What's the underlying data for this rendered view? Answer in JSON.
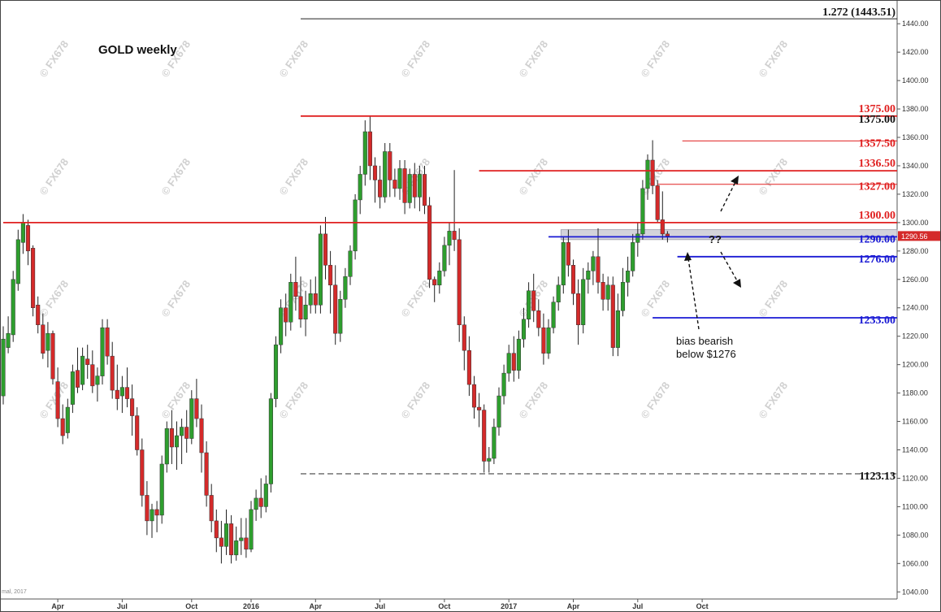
{
  "chart_data": {
    "type": "candlestick",
    "title": "GOLD weekly",
    "ylim": [
      1035,
      1455
    ],
    "y_ticks": [
      1040,
      1060,
      1080,
      1100,
      1120,
      1140,
      1160,
      1180,
      1200,
      1220,
      1240,
      1260,
      1280,
      1300,
      1320,
      1340,
      1360,
      1380,
      1400,
      1420,
      1440
    ],
    "x_ticks": [
      {
        "label": "Apr",
        "bar": 11
      },
      {
        "label": "Jul",
        "bar": 24
      },
      {
        "label": "Oct",
        "bar": 38
      },
      {
        "label": "2016",
        "bar": 50
      },
      {
        "label": "Apr",
        "bar": 63
      },
      {
        "label": "Jul",
        "bar": 76
      },
      {
        "label": "Oct",
        "bar": 89
      },
      {
        "label": "2017",
        "bar": 102
      },
      {
        "label": "Apr",
        "bar": 115
      },
      {
        "label": "Jul",
        "bar": 128
      },
      {
        "label": "Oct",
        "bar": 141
      }
    ],
    "bars_visible": 143,
    "source_note": "mal, 2017",
    "current_price": "1290.56",
    "colors": {
      "up": "#2e9e2e",
      "down": "#d42a2a",
      "resistance": "#e02020",
      "support": "#1a1ad4",
      "neutral": "#222222"
    },
    "candles": [
      [
        1178,
        1227,
        1172,
        1218
      ],
      [
        1212,
        1234,
        1208,
        1222
      ],
      [
        1221,
        1266,
        1216,
        1260
      ],
      [
        1257,
        1295,
        1252,
        1288
      ],
      [
        1286,
        1306,
        1278,
        1300
      ],
      [
        1298,
        1302,
        1270,
        1280
      ],
      [
        1282,
        1284,
        1234,
        1240
      ],
      [
        1242,
        1248,
        1222,
        1228
      ],
      [
        1228,
        1236,
        1204,
        1208
      ],
      [
        1210,
        1230,
        1198,
        1222
      ],
      [
        1222,
        1224,
        1186,
        1190
      ],
      [
        1188,
        1198,
        1156,
        1162
      ],
      [
        1162,
        1172,
        1144,
        1150
      ],
      [
        1152,
        1176,
        1148,
        1170
      ],
      [
        1172,
        1200,
        1166,
        1195
      ],
      [
        1196,
        1212,
        1180,
        1184
      ],
      [
        1186,
        1212,
        1182,
        1206
      ],
      [
        1204,
        1214,
        1190,
        1200
      ],
      [
        1200,
        1210,
        1180,
        1185
      ],
      [
        1186,
        1198,
        1174,
        1192
      ],
      [
        1192,
        1232,
        1186,
        1226
      ],
      [
        1226,
        1232,
        1200,
        1206
      ],
      [
        1206,
        1216,
        1176,
        1182
      ],
      [
        1182,
        1200,
        1168,
        1176
      ],
      [
        1178,
        1192,
        1166,
        1184
      ],
      [
        1184,
        1198,
        1170,
        1176
      ],
      [
        1176,
        1186,
        1150,
        1164
      ],
      [
        1164,
        1170,
        1136,
        1140
      ],
      [
        1140,
        1148,
        1100,
        1108
      ],
      [
        1108,
        1118,
        1080,
        1090
      ],
      [
        1090,
        1102,
        1078,
        1098
      ],
      [
        1098,
        1104,
        1082,
        1094
      ],
      [
        1094,
        1136,
        1088,
        1130
      ],
      [
        1130,
        1160,
        1124,
        1155
      ],
      [
        1155,
        1168,
        1130,
        1142
      ],
      [
        1142,
        1160,
        1126,
        1150
      ],
      [
        1150,
        1162,
        1130,
        1156
      ],
      [
        1156,
        1168,
        1138,
        1148
      ],
      [
        1148,
        1182,
        1144,
        1176
      ],
      [
        1176,
        1190,
        1156,
        1162
      ],
      [
        1162,
        1172,
        1124,
        1138
      ],
      [
        1138,
        1146,
        1100,
        1108
      ],
      [
        1108,
        1116,
        1082,
        1090
      ],
      [
        1090,
        1098,
        1068,
        1078
      ],
      [
        1078,
        1090,
        1060,
        1072
      ],
      [
        1072,
        1098,
        1066,
        1088
      ],
      [
        1088,
        1094,
        1060,
        1066
      ],
      [
        1066,
        1086,
        1062,
        1076
      ],
      [
        1076,
        1092,
        1066,
        1078
      ],
      [
        1078,
        1092,
        1064,
        1070
      ],
      [
        1070,
        1104,
        1068,
        1098
      ],
      [
        1098,
        1112,
        1090,
        1106
      ],
      [
        1106,
        1120,
        1092,
        1100
      ],
      [
        1100,
        1122,
        1096,
        1116
      ],
      [
        1116,
        1180,
        1110,
        1176
      ],
      [
        1176,
        1220,
        1170,
        1214
      ],
      [
        1214,
        1246,
        1208,
        1240
      ],
      [
        1240,
        1250,
        1220,
        1230
      ],
      [
        1230,
        1264,
        1224,
        1258
      ],
      [
        1258,
        1276,
        1238,
        1248
      ],
      [
        1248,
        1262,
        1226,
        1232
      ],
      [
        1232,
        1252,
        1220,
        1242
      ],
      [
        1242,
        1260,
        1236,
        1250
      ],
      [
        1250,
        1262,
        1236,
        1242
      ],
      [
        1242,
        1298,
        1236,
        1292
      ],
      [
        1292,
        1304,
        1260,
        1270
      ],
      [
        1270,
        1280,
        1236,
        1256
      ],
      [
        1256,
        1270,
        1214,
        1222
      ],
      [
        1222,
        1252,
        1216,
        1246
      ],
      [
        1246,
        1268,
        1240,
        1262
      ],
      [
        1262,
        1284,
        1256,
        1280
      ],
      [
        1280,
        1320,
        1274,
        1316
      ],
      [
        1316,
        1340,
        1306,
        1334
      ],
      [
        1334,
        1372,
        1326,
        1364
      ],
      [
        1364,
        1375,
        1330,
        1340
      ],
      [
        1340,
        1346,
        1314,
        1330
      ],
      [
        1330,
        1340,
        1310,
        1318
      ],
      [
        1318,
        1356,
        1314,
        1350
      ],
      [
        1350,
        1356,
        1318,
        1330
      ],
      [
        1330,
        1338,
        1318,
        1324
      ],
      [
        1324,
        1344,
        1316,
        1338
      ],
      [
        1338,
        1344,
        1306,
        1314
      ],
      [
        1314,
        1338,
        1310,
        1334
      ],
      [
        1334,
        1342,
        1310,
        1318
      ],
      [
        1318,
        1340,
        1308,
        1334
      ],
      [
        1334,
        1340,
        1306,
        1312
      ],
      [
        1312,
        1318,
        1254,
        1260
      ],
      [
        1260,
        1262,
        1244,
        1256
      ],
      [
        1256,
        1272,
        1250,
        1266
      ],
      [
        1266,
        1290,
        1262,
        1284
      ],
      [
        1284,
        1300,
        1270,
        1294
      ],
      [
        1294,
        1337,
        1280,
        1288
      ],
      [
        1288,
        1296,
        1216,
        1228
      ],
      [
        1228,
        1234,
        1196,
        1210
      ],
      [
        1210,
        1220,
        1178,
        1186
      ],
      [
        1186,
        1192,
        1162,
        1170
      ],
      [
        1170,
        1180,
        1156,
        1168
      ],
      [
        1168,
        1172,
        1124,
        1132
      ],
      [
        1132,
        1142,
        1124,
        1134
      ],
      [
        1134,
        1162,
        1130,
        1156
      ],
      [
        1156,
        1184,
        1150,
        1178
      ],
      [
        1178,
        1200,
        1172,
        1194
      ],
      [
        1194,
        1214,
        1188,
        1208
      ],
      [
        1208,
        1220,
        1188,
        1196
      ],
      [
        1196,
        1224,
        1190,
        1218
      ],
      [
        1218,
        1240,
        1212,
        1232
      ],
      [
        1232,
        1258,
        1226,
        1252
      ],
      [
        1252,
        1264,
        1230,
        1238
      ],
      [
        1238,
        1246,
        1220,
        1226
      ],
      [
        1226,
        1236,
        1200,
        1208
      ],
      [
        1208,
        1232,
        1204,
        1226
      ],
      [
        1226,
        1248,
        1222,
        1244
      ],
      [
        1244,
        1262,
        1238,
        1256
      ],
      [
        1256,
        1290,
        1250,
        1286
      ],
      [
        1286,
        1295,
        1262,
        1270
      ],
      [
        1270,
        1274,
        1242,
        1250
      ],
      [
        1250,
        1260,
        1214,
        1228
      ],
      [
        1228,
        1268,
        1222,
        1260
      ],
      [
        1260,
        1272,
        1250,
        1266
      ],
      [
        1266,
        1280,
        1256,
        1276
      ],
      [
        1276,
        1296,
        1250,
        1258
      ],
      [
        1258,
        1264,
        1238,
        1246
      ],
      [
        1246,
        1262,
        1238,
        1256
      ],
      [
        1256,
        1262,
        1206,
        1212
      ],
      [
        1212,
        1250,
        1206,
        1238
      ],
      [
        1238,
        1268,
        1234,
        1258
      ],
      [
        1258,
        1276,
        1248,
        1266
      ],
      [
        1266,
        1292,
        1262,
        1286
      ],
      [
        1286,
        1300,
        1276,
        1292
      ],
      [
        1292,
        1330,
        1288,
        1324
      ],
      [
        1324,
        1348,
        1316,
        1344
      ],
      [
        1344,
        1358,
        1320,
        1326
      ],
      [
        1326,
        1330,
        1300,
        1302
      ],
      [
        1302,
        1322,
        1288,
        1292
      ],
      [
        1292,
        1294,
        1286,
        1290.56
      ]
    ],
    "levels": [
      {
        "label": "1.272 (1443.51)",
        "price": 1443.51,
        "from_bar": 60,
        "style": "thin",
        "color": "#222222",
        "text_color": "#111111"
      },
      {
        "label": "1375.00",
        "price": 1375,
        "from_bar": 60,
        "style": "solid",
        "color": "#e02020",
        "text_color": "#e02020",
        "label_offset": -5
      },
      {
        "label": "1375.00",
        "price": 1375,
        "from_bar": null,
        "style": "label-only",
        "color": "#111111",
        "text_color": "#111111",
        "label_offset": 8
      },
      {
        "label": "1357.50",
        "price": 1357.5,
        "from_bar": 137,
        "style": "thin",
        "color": "#e02020",
        "text_color": "#e02020",
        "label_offset": 7
      },
      {
        "label": "1336.50",
        "price": 1336.5,
        "from_bar": 96,
        "style": "solid",
        "color": "#e02020",
        "text_color": "#e02020",
        "label_offset": -5
      },
      {
        "label": "1327.00",
        "price": 1327,
        "from_bar": 132,
        "style": "thin",
        "color": "#e02020",
        "text_color": "#e02020",
        "label_offset": 7
      },
      {
        "label": "1300.00",
        "price": 1300,
        "from_bar": 0,
        "style": "solid",
        "color": "#e02020",
        "text_color": "#e02020",
        "label_offset": -5
      },
      {
        "label": "1290.00",
        "price": 1290,
        "from_bar": 110,
        "style": "solid",
        "color": "#1a1ad4",
        "text_color": "#1a1ad4",
        "label_offset": 7
      },
      {
        "label": "1276.00",
        "price": 1276,
        "from_bar": 136,
        "style": "solid",
        "color": "#1a1ad4",
        "text_color": "#1a1ad4",
        "label_offset": 7
      },
      {
        "label": "1233.00",
        "price": 1233,
        "from_bar": 131,
        "style": "solid",
        "color": "#1a1ad4",
        "text_color": "#1a1ad4",
        "label_offset": 7
      },
      {
        "label": "1123.13",
        "price": 1123.13,
        "from_bar": 60,
        "style": "dashed",
        "color": "#666666",
        "text_color": "#111111",
        "label_offset": 7
      }
    ],
    "zone": {
      "from_price": 1288,
      "to_price": 1295,
      "from_bar": 113
    },
    "annotations": {
      "question": "??",
      "note_line1": "bias bearish",
      "note_line2": "below $1276"
    }
  }
}
